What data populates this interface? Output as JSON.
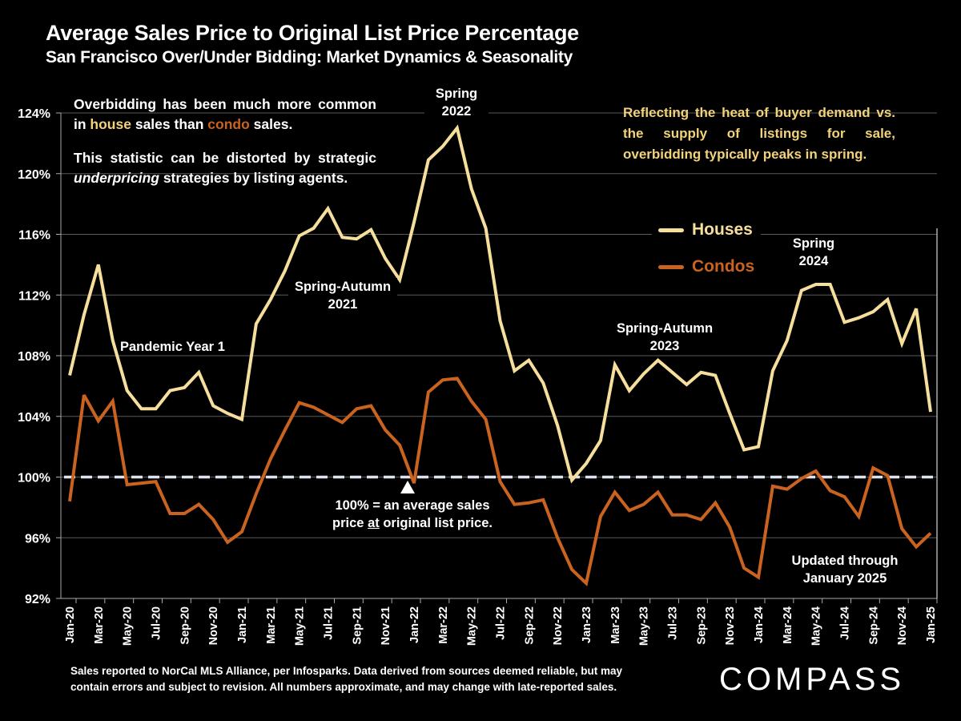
{
  "header": {
    "title": "Average Sales Price to Original List Price Percentage",
    "subtitle": "San Francisco Over/Under Bidding: Market Dynamics & Seasonality"
  },
  "annotations": {
    "left_note_1_a": "Overbidding has been much more common in ",
    "left_note_1_house": "house",
    "left_note_1_b": " sales than ",
    "left_note_1_condo": "condo",
    "left_note_1_c": " sales.",
    "left_note_2_a": "This statistic can be distorted by strategic ",
    "left_note_2_em": "underpricing",
    "left_note_2_b": " strategies by listing agents.",
    "right_note": "Reflecting the heat of buyer demand vs. the supply of listings for sale, overbidding typically peaks in spring.",
    "pandemic": "Pandemic Year 1",
    "spring_autumn_2021_l1": "Spring-Autumn",
    "spring_autumn_2021_l2": "2021",
    "spring_2022_l1": "Spring",
    "spring_2022_l2": "2022",
    "spring_autumn_2023_l1": "Spring-Autumn",
    "spring_autumn_2023_l2": "2023",
    "spring_2024_l1": "Spring",
    "spring_2024_l2": "2024",
    "baseline_note_l1": "100% = an average sales",
    "baseline_note_l2a": "price ",
    "baseline_note_l2u": "at",
    "baseline_note_l2b": " original list price.",
    "updated_l1": "Updated through",
    "updated_l2": "January 2025"
  },
  "footer": {
    "source_l1": "Sales reported to NorCal MLS Alliance, per Infosparks. Data derived from sources deemed reliable, but may",
    "source_l2": "contain errors and subject to revision. All numbers approximate, and may change with late-reported sales.",
    "logo": "COMPASS"
  },
  "colors": {
    "houses": "#F6DE9C",
    "condos": "#C9631F",
    "note_yellow": "#F2D37A",
    "baseline": "#DDE3EE",
    "grid": "#5a5a5a"
  },
  "chart_data": {
    "type": "line",
    "title": "Average Sales Price to Original List Price Percentage",
    "subtitle": "San Francisco Over/Under Bidding: Market Dynamics & Seasonality",
    "xlabel": "",
    "ylabel": "",
    "ylim": [
      92,
      124
    ],
    "yticks": [
      92,
      96,
      100,
      104,
      108,
      112,
      116,
      120,
      124
    ],
    "ytick_labels": [
      "92%",
      "96%",
      "100%",
      "104%",
      "108%",
      "112%",
      "116%",
      "120%",
      "124%"
    ],
    "grid": true,
    "legend_position": "top-right",
    "reference_line": {
      "value": 100,
      "style": "dashed"
    },
    "x": [
      "Jan-20",
      "Feb-20",
      "Mar-20",
      "Apr-20",
      "May-20",
      "Jun-20",
      "Jul-20",
      "Aug-20",
      "Sep-20",
      "Oct-20",
      "Nov-20",
      "Dec-20",
      "Jan-21",
      "Feb-21",
      "Mar-21",
      "Apr-21",
      "May-21",
      "Jun-21",
      "Jul-21",
      "Aug-21",
      "Sep-21",
      "Oct-21",
      "Nov-21",
      "Dec-21",
      "Jan-22",
      "Feb-22",
      "Mar-22",
      "Apr-22",
      "May-22",
      "Jun-22",
      "Jul-22",
      "Aug-22",
      "Sep-22",
      "Oct-22",
      "Nov-22",
      "Dec-22",
      "Jan-23",
      "Feb-23",
      "Mar-23",
      "Apr-23",
      "May-23",
      "Jun-23",
      "Jul-23",
      "Aug-23",
      "Sep-23",
      "Oct-23",
      "Nov-23",
      "Dec-23",
      "Jan-24",
      "Feb-24",
      "Mar-24",
      "Apr-24",
      "May-24",
      "Jun-24",
      "Jul-24",
      "Aug-24",
      "Sep-24",
      "Oct-24",
      "Nov-24",
      "Dec-24",
      "Jan-25"
    ],
    "xtick_labels": [
      "Jan-20",
      "Mar-20",
      "May-20",
      "Jul-20",
      "Sep-20",
      "Nov-20",
      "Jan-21",
      "Mar-21",
      "May-21",
      "Jul-21",
      "Sep-21",
      "Nov-21",
      "Jan-22",
      "Mar-22",
      "May-22",
      "Jul-22",
      "Sep-22",
      "Nov-22",
      "Jan-23",
      "Mar-23",
      "May-23",
      "Jul-23",
      "Sep-23",
      "Nov-23",
      "Jan-24",
      "Mar-24",
      "May-24",
      "Jul-24",
      "Sep-24",
      "Nov-24",
      "Jan-25"
    ],
    "series": [
      {
        "name": "Houses",
        "values": [
          106.7,
          110.7,
          114.0,
          109.0,
          105.7,
          104.5,
          104.5,
          105.7,
          105.9,
          106.9,
          104.7,
          104.2,
          103.8,
          110.1,
          111.7,
          113.6,
          115.9,
          116.4,
          117.7,
          115.8,
          115.7,
          116.3,
          114.4,
          113.0,
          116.8,
          120.9,
          121.8,
          123.0,
          119.0,
          116.4,
          110.3,
          107.0,
          107.7,
          106.2,
          103.4,
          99.8,
          100.9,
          102.4,
          107.4,
          105.7,
          106.8,
          107.7,
          106.9,
          106.1,
          106.9,
          106.7,
          104.2,
          101.8,
          102.0,
          107.0,
          109.0,
          112.3,
          112.7,
          112.7,
          110.2,
          110.5,
          110.9,
          111.7,
          108.8,
          111.1,
          104.3
        ]
      },
      {
        "name": "Condos",
        "values": [
          98.4,
          105.4,
          103.7,
          105.0,
          99.5,
          99.6,
          99.7,
          97.6,
          97.6,
          98.2,
          97.2,
          95.7,
          96.4,
          98.9,
          101.2,
          103.1,
          104.9,
          104.6,
          104.1,
          103.6,
          104.5,
          104.7,
          103.1,
          102.1,
          99.6,
          105.6,
          106.4,
          106.5,
          105.0,
          103.8,
          99.7,
          98.2,
          98.3,
          98.5,
          96.0,
          93.9,
          93.0,
          97.4,
          99.0,
          97.8,
          98.2,
          99.0,
          97.5,
          97.5,
          97.2,
          98.3,
          96.7,
          94.0,
          93.4,
          99.4,
          99.2,
          99.9,
          100.4,
          99.1,
          98.7,
          97.4,
          100.6,
          100.1,
          96.6,
          95.4,
          96.3
        ]
      }
    ]
  }
}
